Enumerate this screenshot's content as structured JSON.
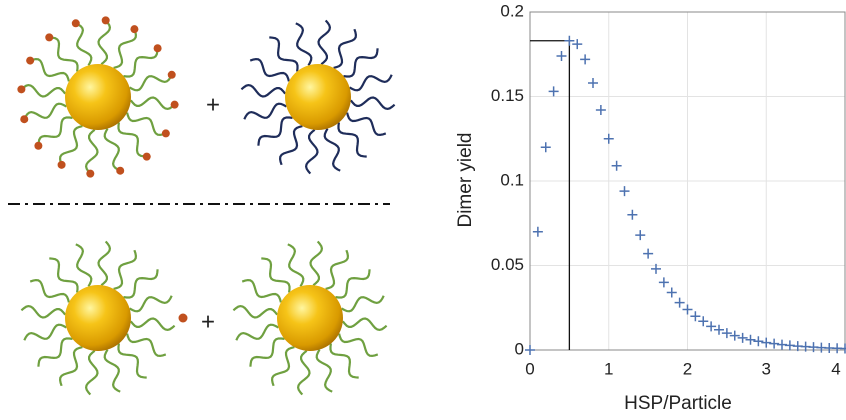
{
  "diagram": {
    "plus_labels": [
      "+",
      "+"
    ]
  },
  "chart_data": {
    "type": "scatter",
    "marker": "+",
    "color": "#4d72b0",
    "xlabel": "HSP/Particle",
    "ylabel": "Dimer yield",
    "x": [
      0,
      0.1,
      0.2,
      0.3,
      0.4,
      0.5,
      0.6,
      0.7,
      0.8,
      0.9,
      1.0,
      1.1,
      1.2,
      1.3,
      1.4,
      1.5,
      1.6,
      1.7,
      1.8,
      1.9,
      2.0,
      2.1,
      2.2,
      2.3,
      2.4,
      2.5,
      2.6,
      2.7,
      2.8,
      2.9,
      3.0,
      3.1,
      3.2,
      3.3,
      3.4,
      3.5,
      3.6,
      3.7,
      3.8,
      3.9,
      4.0
    ],
    "values": [
      0,
      0.07,
      0.12,
      0.153,
      0.174,
      0.183,
      0.181,
      0.172,
      0.158,
      0.142,
      0.125,
      0.109,
      0.094,
      0.08,
      0.068,
      0.057,
      0.048,
      0.04,
      0.034,
      0.028,
      0.024,
      0.02,
      0.017,
      0.014,
      0.012,
      0.01,
      0.0085,
      0.0072,
      0.0061,
      0.0052,
      0.0044,
      0.0038,
      0.0032,
      0.0027,
      0.0023,
      0.002,
      0.0017,
      0.0014,
      0.0012,
      0.001,
      0.0009
    ],
    "reference_point": {
      "x": 0.5,
      "y": 0.183
    },
    "xlim": [
      0,
      4
    ],
    "xticks": [
      0,
      1,
      2,
      3,
      4
    ],
    "ylim": [
      0,
      0.2
    ],
    "yticks": [
      0,
      0.05,
      0.1,
      0.15,
      0.2
    ],
    "grid": true
  }
}
